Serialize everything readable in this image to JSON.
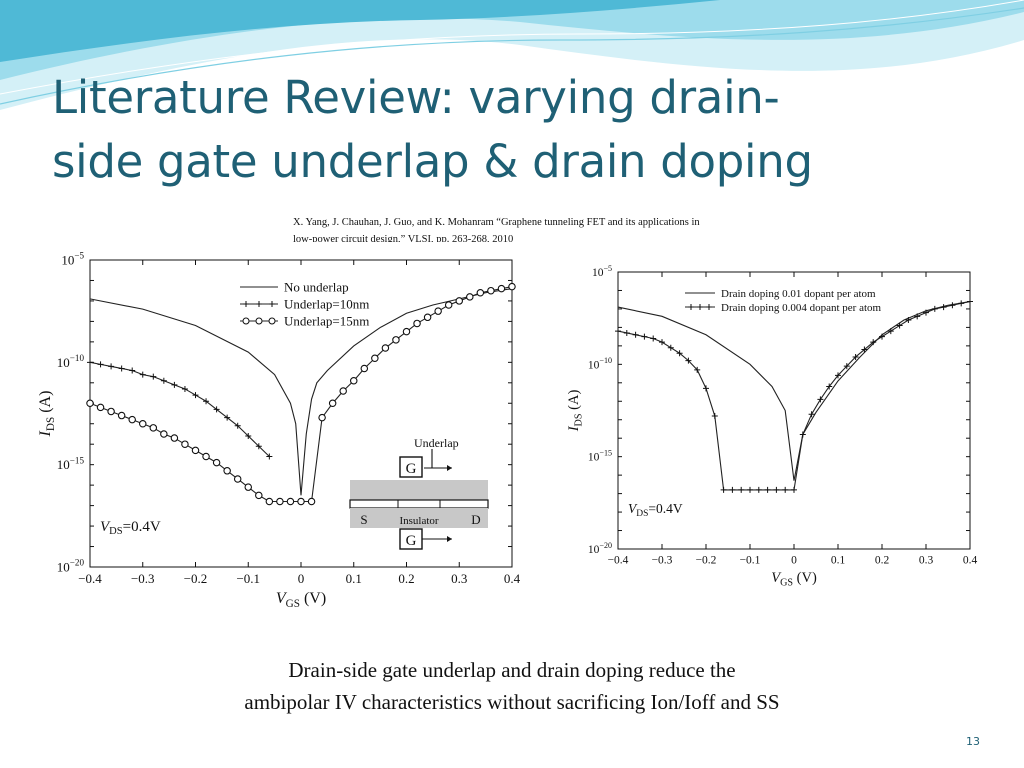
{
  "slide": {
    "title_line1": "Literature Review: varying drain-",
    "title_line2": "side gate underlap & drain doping",
    "citation_line1": "X. Yang, J. Chauhan, J. Guo, and K. Mohanram “Graphene tunneling FET and its applications in",
    "citation_line2": "low-power circuit design,”  VLSI, pp. 263-268, 2010",
    "caption_line1": "Drain-side gate underlap and drain doping reduce the",
    "caption_line2": "ambipolar IV characteristics without sacrificing Ion/Ioff and SS",
    "page_number": "13",
    "colors": {
      "title": "#1f6075",
      "wave_light": "#c6ecf5",
      "wave_mid": "#7fd0e6",
      "wave_dark": "#2fa7c6"
    }
  },
  "chart_data": [
    {
      "type": "line",
      "title": "",
      "xlabel": "VGS (V)",
      "ylabel": "IDS (A)",
      "xlim": [
        -0.4,
        0.4
      ],
      "ylim": [
        1e-20,
        1e-05
      ],
      "yscale": "log",
      "xticks": [
        "−0.4",
        "−0.3",
        "−0.2",
        "−0.1",
        "0",
        "0.1",
        "0.2",
        "0.3",
        "0.4"
      ],
      "yticks": [
        "10−5",
        "10−10",
        "10−15",
        "10−20"
      ],
      "legend_position": "top-center",
      "annotation": "VDS=0.4V",
      "inset": {
        "gate_label": "G",
        "underlap_label": "Underlap",
        "source_label": "S",
        "insulator_label": "Insulator",
        "drain_label": "D"
      },
      "series": [
        {
          "name": "No underlap",
          "marker": "none",
          "x": [
            -0.4,
            -0.3,
            -0.2,
            -0.1,
            -0.05,
            -0.02,
            -0.01,
            0.0,
            0.01,
            0.02,
            0.03,
            0.05,
            0.1,
            0.15,
            0.2,
            0.25,
            0.3,
            0.35,
            0.4
          ],
          "y": [
            -6.9,
            -7.4,
            -8.2,
            -9.5,
            -10.6,
            -12.0,
            -13.0,
            -16.5,
            -13.5,
            -11.8,
            -11.0,
            -10.4,
            -9.2,
            -8.3,
            -7.6,
            -7.2,
            -6.9,
            -6.6,
            -6.4
          ]
        },
        {
          "name": "Underlap=10nm",
          "marker": "plus",
          "x": [
            -0.4,
            -0.38,
            -0.36,
            -0.34,
            -0.32,
            -0.3,
            -0.28,
            -0.26,
            -0.24,
            -0.22,
            -0.2,
            -0.18,
            -0.16,
            -0.14,
            -0.12,
            -0.1,
            -0.08,
            -0.06
          ],
          "y": [
            -10.0,
            -10.1,
            -10.2,
            -10.3,
            -10.4,
            -10.6,
            -10.7,
            -10.9,
            -11.1,
            -11.3,
            -11.6,
            -11.9,
            -12.3,
            -12.7,
            -13.1,
            -13.6,
            -14.1,
            -14.6
          ]
        },
        {
          "name": "Underlap=15nm",
          "marker": "circle",
          "x": [
            -0.4,
            -0.38,
            -0.36,
            -0.34,
            -0.32,
            -0.3,
            -0.28,
            -0.26,
            -0.24,
            -0.22,
            -0.2,
            -0.18,
            -0.16,
            -0.14,
            -0.12,
            -0.1,
            -0.08,
            -0.06,
            -0.04,
            -0.02,
            0.0,
            0.02,
            0.04,
            0.06,
            0.08,
            0.1,
            0.12,
            0.14,
            0.16,
            0.18,
            0.2,
            0.22,
            0.24,
            0.26,
            0.28,
            0.3,
            0.32,
            0.34,
            0.36,
            0.38,
            0.4
          ],
          "y": [
            -12.0,
            -12.2,
            -12.4,
            -12.6,
            -12.8,
            -13.0,
            -13.2,
            -13.5,
            -13.7,
            -14.0,
            -14.3,
            -14.6,
            -14.9,
            -15.3,
            -15.7,
            -16.1,
            -16.5,
            -16.8,
            -16.8,
            -16.8,
            -16.8,
            -16.8,
            -12.7,
            -12.0,
            -11.4,
            -10.9,
            -10.3,
            -9.8,
            -9.3,
            -8.9,
            -8.5,
            -8.1,
            -7.8,
            -7.5,
            -7.2,
            -7.0,
            -6.8,
            -6.6,
            -6.5,
            -6.4,
            -6.3
          ]
        }
      ]
    },
    {
      "type": "line",
      "title": "",
      "xlabel": "VGS (V)",
      "ylabel": "IDS (A)",
      "xlim": [
        -0.4,
        0.4
      ],
      "ylim": [
        1e-20,
        1e-05
      ],
      "yscale": "log",
      "xticks": [
        "−0.4",
        "−0.3",
        "−0.2",
        "−0.1",
        "0",
        "0.1",
        "0.2",
        "0.3",
        "0.4"
      ],
      "yticks": [
        "10−5",
        "10−10",
        "10−15",
        "10−20"
      ],
      "legend_position": "top-center",
      "annotation": "VDS=0.4V",
      "series": [
        {
          "name": "Drain doping 0.01 dopant per atom",
          "marker": "none",
          "x": [
            -0.4,
            -0.3,
            -0.2,
            -0.1,
            -0.05,
            -0.02,
            0.0,
            0.02,
            0.05,
            0.1,
            0.15,
            0.2,
            0.25,
            0.3,
            0.35,
            0.4
          ],
          "y": [
            -6.9,
            -7.4,
            -8.4,
            -10.0,
            -11.2,
            -12.5,
            -16.3,
            -13.8,
            -12.6,
            -10.9,
            -9.6,
            -8.4,
            -7.6,
            -7.1,
            -6.8,
            -6.6
          ]
        },
        {
          "name": "Drain doping 0.004 dopant per atom",
          "marker": "plus",
          "x": [
            -0.4,
            -0.38,
            -0.36,
            -0.34,
            -0.32,
            -0.3,
            -0.28,
            -0.26,
            -0.24,
            -0.22,
            -0.2,
            -0.18,
            -0.16,
            -0.14,
            -0.12,
            -0.1,
            -0.08,
            -0.06,
            -0.04,
            -0.02,
            0.0,
            0.02,
            0.04,
            0.06,
            0.08,
            0.1,
            0.12,
            0.14,
            0.16,
            0.18,
            0.2,
            0.22,
            0.24,
            0.26,
            0.28,
            0.3,
            0.32,
            0.34,
            0.36,
            0.38,
            0.4
          ],
          "y": [
            -8.2,
            -8.3,
            -8.4,
            -8.5,
            -8.6,
            -8.8,
            -9.1,
            -9.4,
            -9.8,
            -10.3,
            -11.3,
            -12.8,
            -16.8,
            -16.8,
            -16.8,
            -16.8,
            -16.8,
            -16.8,
            -16.8,
            -16.8,
            -16.8,
            -13.8,
            -12.7,
            -11.9,
            -11.2,
            -10.6,
            -10.1,
            -9.6,
            -9.2,
            -8.8,
            -8.5,
            -8.2,
            -7.9,
            -7.6,
            -7.4,
            -7.2,
            -7.0,
            -6.9,
            -6.8,
            -6.7,
            -6.6
          ]
        }
      ]
    }
  ]
}
